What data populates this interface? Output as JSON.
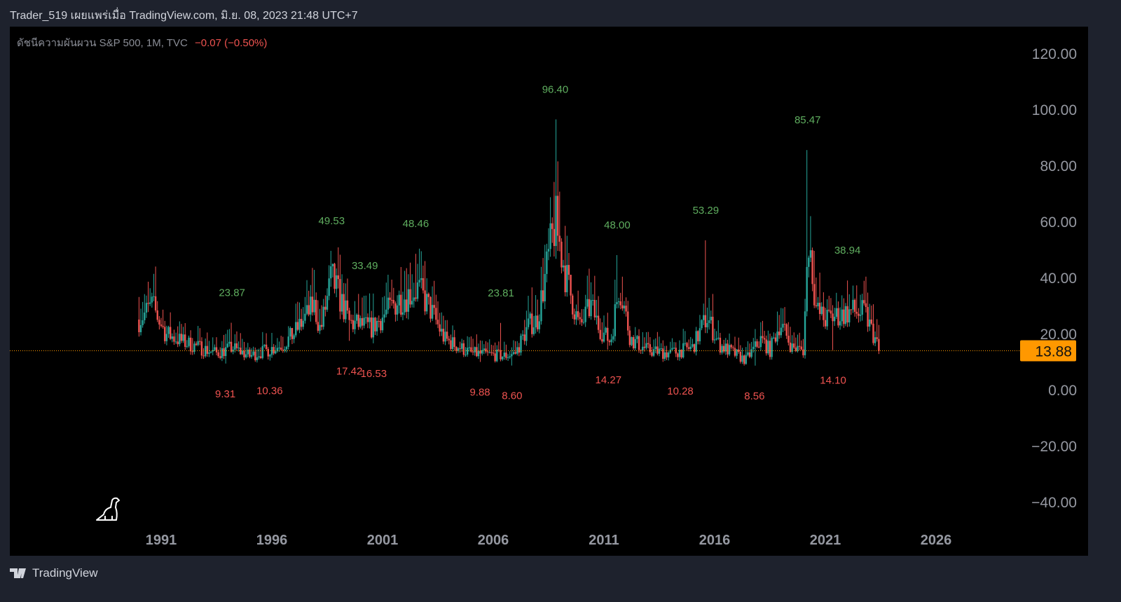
{
  "header": {
    "title": "Trader_519 เผยแพร่เมื่อ TradingView.com, มิ.ย. 08, 2023 21:48 UTC+7"
  },
  "legend": {
    "symbol": "ดัชนีความผันผวน S&P 500, 1M, TVC",
    "change": "−0.07 (−0.50%)"
  },
  "footer": {
    "brand": "TradingView"
  },
  "colors": {
    "up": "#26a69a",
    "down": "#ef5350",
    "high_label": "#5fae5f",
    "low_label": "#ef5350",
    "last_price": "#ff9800"
  },
  "chart_data": {
    "type": "candlestick",
    "title": "S&P 500 Volatility Index (VIX), 1M",
    "y_ticks": [
      "120.00",
      "100.00",
      "80.00",
      "60.00",
      "40.00",
      "20.00",
      "0.00",
      "−20.00",
      "−40.00"
    ],
    "y_tick_values": [
      120,
      100,
      80,
      60,
      40,
      20,
      0,
      -20,
      -40
    ],
    "x_ticks": [
      "1991",
      "1996",
      "2001",
      "2006",
      "2011",
      "2016",
      "2021",
      "2026"
    ],
    "x_tick_values": [
      1991,
      1996,
      2001,
      2006,
      2011,
      2016,
      2021,
      2026
    ],
    "ylim": [
      -50,
      130
    ],
    "last_price": "13.88",
    "last_value": 13.88,
    "close_path": [
      [
        1990.0,
        25
      ],
      [
        1990.6,
        30
      ],
      [
        1991.2,
        20
      ],
      [
        1992,
        17
      ],
      [
        1993.5,
        13
      ],
      [
        1994.2,
        15
      ],
      [
        1995,
        12
      ],
      [
        1996.5,
        16
      ],
      [
        1997,
        20
      ],
      [
        1997.9,
        30
      ],
      [
        1998.2,
        21
      ],
      [
        1998.7,
        40
      ],
      [
        1999.5,
        24
      ],
      [
        2000.5,
        22
      ],
      [
        2001,
        26
      ],
      [
        2001.7,
        32
      ],
      [
        2002.6,
        36
      ],
      [
        2003.2,
        28
      ],
      [
        2003.8,
        18
      ],
      [
        2005,
        13
      ],
      [
        2006.5,
        12
      ],
      [
        2007,
        13
      ],
      [
        2007.6,
        23
      ],
      [
        2008,
        25
      ],
      [
        2008.8,
        60
      ],
      [
        2009.3,
        40
      ],
      [
        2009.9,
        22
      ],
      [
        2010.4,
        30
      ],
      [
        2010.8,
        22
      ],
      [
        2011.3,
        17
      ],
      [
        2011.7,
        38
      ],
      [
        2012.2,
        18
      ],
      [
        2013,
        14
      ],
      [
        2014,
        13
      ],
      [
        2015,
        15
      ],
      [
        2015.65,
        26
      ],
      [
        2016.2,
        16
      ],
      [
        2017.4,
        10.5
      ],
      [
        2018.1,
        18
      ],
      [
        2018.5,
        14
      ],
      [
        2018.95,
        24
      ],
      [
        2019.5,
        15
      ],
      [
        2020.0,
        14
      ],
      [
        2020.25,
        55
      ],
      [
        2020.6,
        28
      ],
      [
        2021,
        25
      ],
      [
        2022.2,
        28
      ],
      [
        2022.8,
        27
      ],
      [
        2023.2,
        19
      ],
      [
        2023.45,
        13.88
      ]
    ],
    "highs": [
      {
        "t": 1994.2,
        "value": 23.87,
        "label": "23.87"
      },
      {
        "t": 1998.7,
        "value": 49.53,
        "label": "49.53"
      },
      {
        "t": 2000.2,
        "value": 33.49,
        "label": "33.49"
      },
      {
        "t": 2002.5,
        "value": 48.46,
        "label": "48.46"
      },
      {
        "t": 2006.35,
        "value": 23.81,
        "label": "23.81"
      },
      {
        "t": 2008.8,
        "value": 96.4,
        "label": "96.40"
      },
      {
        "t": 2011.6,
        "value": 48.0,
        "label": "48.00"
      },
      {
        "t": 2015.6,
        "value": 53.29,
        "label": "53.29"
      },
      {
        "t": 2020.2,
        "value": 85.47,
        "label": "85.47"
      },
      {
        "t": 2022.0,
        "value": 38.94,
        "label": "38.94"
      }
    ],
    "lows": [
      {
        "t": 1993.9,
        "value": 9.31,
        "label": "9.31"
      },
      {
        "t": 1995.9,
        "value": 10.36,
        "label": "10.36"
      },
      {
        "t": 1999.5,
        "value": 17.42,
        "label": "17.42"
      },
      {
        "t": 2000.6,
        "value": 16.53,
        "label": "16.53"
      },
      {
        "t": 2005.4,
        "value": 9.88,
        "label": "9.88"
      },
      {
        "t": 2006.85,
        "value": 8.6,
        "label": "8.60"
      },
      {
        "t": 2011.2,
        "value": 14.27,
        "label": "14.27"
      },
      {
        "t": 2014.45,
        "value": 10.28,
        "label": "10.28"
      },
      {
        "t": 2017.8,
        "value": 8.56,
        "label": "8.56"
      },
      {
        "t": 2021.35,
        "value": 14.1,
        "label": "14.10"
      }
    ]
  }
}
